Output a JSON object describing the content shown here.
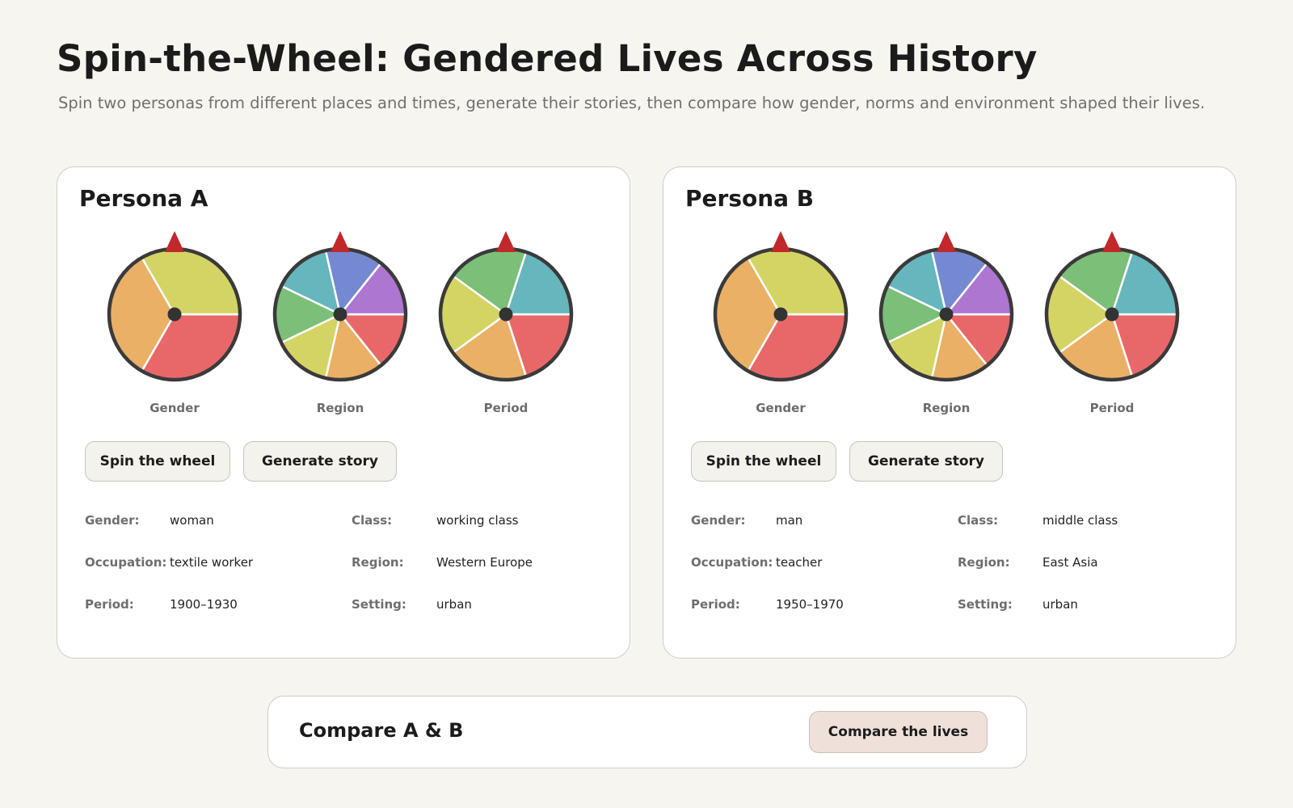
{
  "header": {
    "title": "Spin-the-Wheel: Gendered Lives Across History",
    "subtitle": "Spin two personas from different places and times, generate their stories, then compare how gender, norms and environment shaped their lives."
  },
  "colors": {
    "page_bg": "#f6f5ef",
    "wheel_rim": "#3a3a3a",
    "pointer": "#c0282a",
    "segment_palette": [
      "#e8686a",
      "#e9b066",
      "#d4d464",
      "#7cbf78",
      "#66b6be",
      "#7489d1",
      "#ad76d0"
    ]
  },
  "wheels": {
    "Gender": {
      "segments": 3,
      "palette_order": [
        "#e8686a",
        "#e9b066",
        "#d4d464"
      ]
    },
    "Region": {
      "segments": 7,
      "palette_order": [
        "#e8686a",
        "#e9b066",
        "#d4d464",
        "#7cbf78",
        "#66b6be",
        "#7489d1",
        "#ad76d0"
      ]
    },
    "Period": {
      "segments": 5,
      "palette_order": [
        "#e8686a",
        "#e9b066",
        "#d4d464",
        "#7cbf78",
        "#66b6be"
      ]
    }
  },
  "personas": [
    {
      "title": "Persona A",
      "wheel_labels": [
        "Gender",
        "Region",
        "Period"
      ],
      "spin_label": "Spin the wheel",
      "story_label": "Generate story",
      "details": {
        "gender_key": "Gender:",
        "gender": "woman",
        "class_key": "Class:",
        "class": "working class",
        "occupation_key": "Occupation:",
        "occupation": "textile worker",
        "region_key": "Region:",
        "region": "Western Europe",
        "period_key": "Period:",
        "period": "1900–1930",
        "setting_key": "Setting:",
        "setting": "urban"
      }
    },
    {
      "title": "Persona B",
      "wheel_labels": [
        "Gender",
        "Region",
        "Period"
      ],
      "spin_label": "Spin the wheel",
      "story_label": "Generate story",
      "details": {
        "gender_key": "Gender:",
        "gender": "man",
        "class_key": "Class:",
        "class": "middle class",
        "occupation_key": "Occupation:",
        "occupation": "teacher",
        "region_key": "Region:",
        "region": "East Asia",
        "period_key": "Period:",
        "period": "1950–1970",
        "setting_key": "Setting:",
        "setting": "urban"
      }
    }
  ],
  "compare": {
    "title": "Compare A & B",
    "button_label": "Compare the lives"
  }
}
